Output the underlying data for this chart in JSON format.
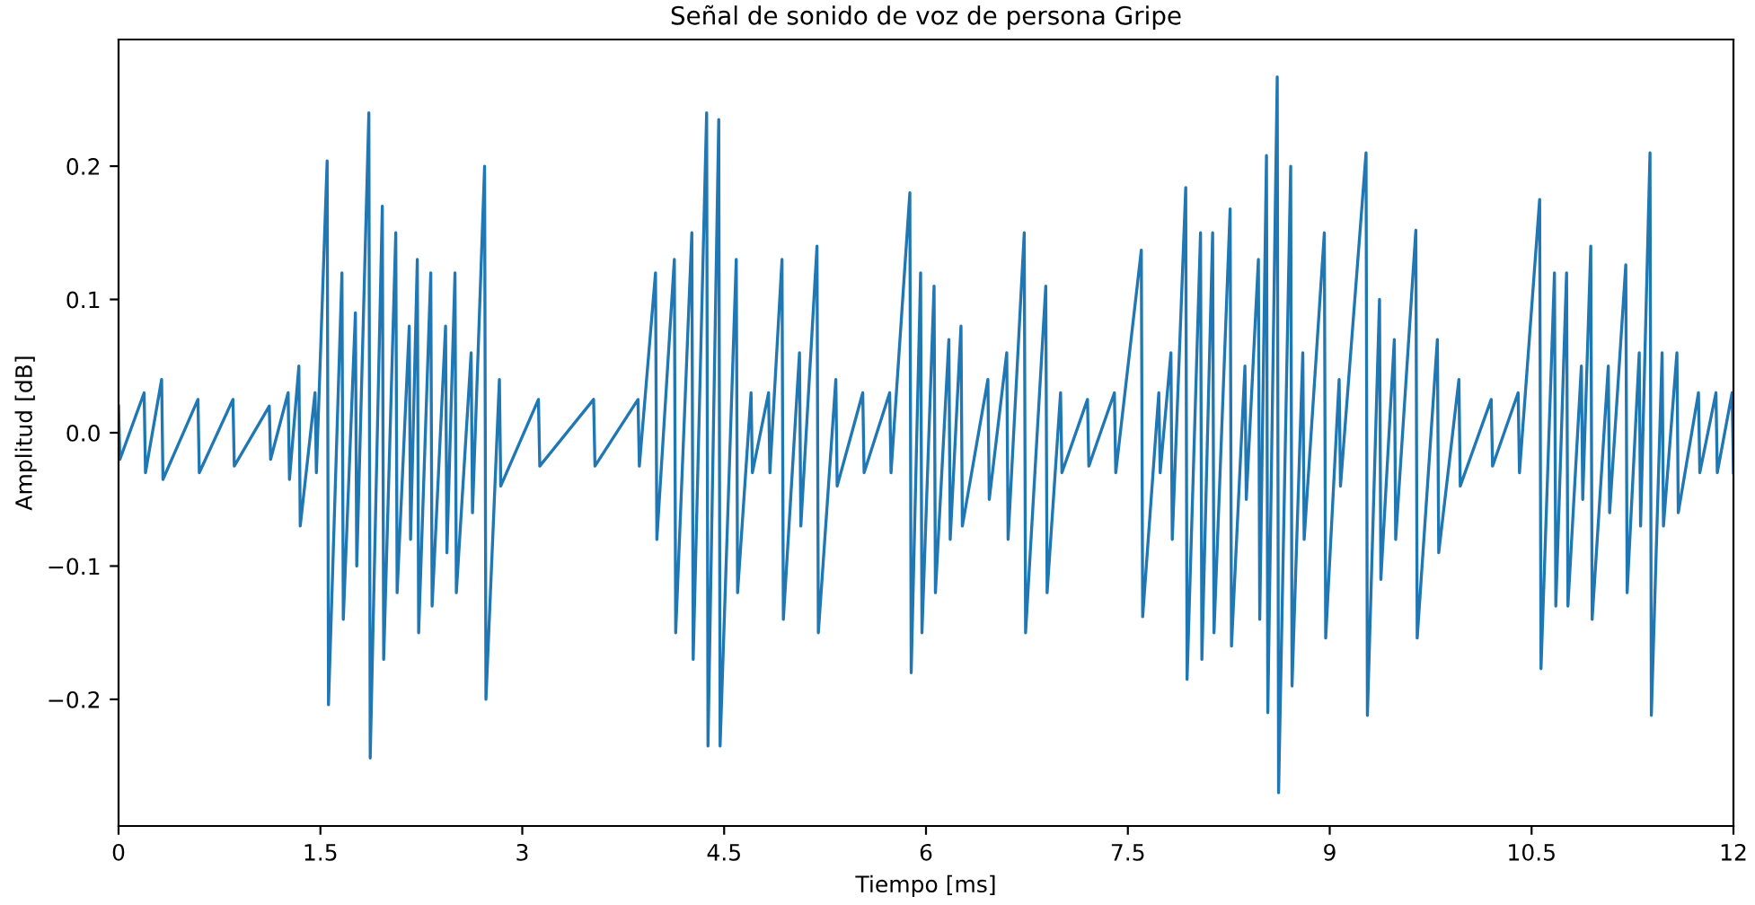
{
  "chart_data": {
    "type": "line",
    "title": "Señal de sonido de voz de persona Gripe",
    "xlabel": "Tiempo [ms]",
    "ylabel": "Amplitud [dB]",
    "xlim": [
      0,
      12
    ],
    "ylim": [
      -0.295,
      0.295
    ],
    "xticks": [
      0,
      1.5,
      3,
      4.5,
      6,
      7.5,
      9,
      10.5,
      12
    ],
    "yticks": [
      {
        "value": -0.2,
        "label": "−0.2"
      },
      {
        "value": -0.1,
        "label": "−0.1"
      },
      {
        "value": 0,
        "label": "0.0"
      },
      {
        "value": 0.1,
        "label": "0.1"
      },
      {
        "value": 0.2,
        "label": "0.2"
      }
    ],
    "grid": false,
    "line_style": "solid",
    "marker": "none",
    "series": [
      {
        "color": "#1f77b4",
        "x": [
          0.0,
          0.01,
          0.19,
          0.2,
          0.32,
          0.33,
          0.59,
          0.6,
          0.85,
          0.86,
          1.12,
          1.13,
          1.26,
          1.27,
          1.34,
          1.35,
          1.46,
          1.47,
          1.55,
          1.56,
          1.66,
          1.67,
          1.76,
          1.77,
          1.86,
          1.87,
          1.96,
          1.97,
          2.06,
          2.07,
          2.16,
          2.17,
          2.22,
          2.23,
          2.32,
          2.33,
          2.43,
          2.44,
          2.5,
          2.51,
          2.62,
          2.63,
          2.72,
          2.73,
          2.83,
          2.84,
          3.12,
          3.13,
          3.53,
          3.54,
          3.86,
          3.87,
          3.99,
          4.0,
          4.13,
          4.14,
          4.26,
          4.27,
          4.37,
          4.38,
          4.46,
          4.47,
          4.59,
          4.6,
          4.7,
          4.71,
          4.83,
          4.84,
          4.93,
          4.94,
          5.06,
          5.07,
          5.19,
          5.2,
          5.33,
          5.34,
          5.53,
          5.54,
          5.73,
          5.74,
          5.88,
          5.89,
          5.96,
          5.97,
          6.06,
          6.07,
          6.17,
          6.18,
          6.26,
          6.27,
          6.46,
          6.47,
          6.6,
          6.61,
          6.73,
          6.74,
          6.89,
          6.9,
          7.0,
          7.01,
          7.2,
          7.21,
          7.4,
          7.41,
          7.6,
          7.61,
          7.73,
          7.74,
          7.82,
          7.83,
          7.93,
          7.94,
          8.04,
          8.05,
          8.13,
          8.14,
          8.26,
          8.27,
          8.37,
          8.38,
          8.47,
          8.48,
          8.53,
          8.54,
          8.61,
          8.62,
          8.71,
          8.72,
          8.8,
          8.81,
          8.96,
          8.97,
          9.07,
          9.08,
          9.27,
          9.28,
          9.37,
          9.38,
          9.48,
          9.49,
          9.64,
          9.65,
          9.8,
          9.81,
          9.96,
          9.97,
          10.2,
          10.21,
          10.4,
          10.41,
          10.56,
          10.57,
          10.67,
          10.68,
          10.76,
          10.77,
          10.87,
          10.88,
          10.94,
          10.95,
          11.07,
          11.08,
          11.2,
          11.21,
          11.3,
          11.31,
          11.38,
          11.39,
          11.47,
          11.48,
          11.58,
          11.59,
          11.74,
          11.75,
          11.87,
          11.88,
          11.99,
          12.0
        ],
        "values": [
          0.02,
          -0.02,
          0.03,
          -0.03,
          0.04,
          -0.035,
          0.025,
          -0.03,
          0.025,
          -0.025,
          0.02,
          -0.02,
          0.03,
          -0.035,
          0.05,
          -0.07,
          0.03,
          -0.03,
          0.204,
          -0.204,
          0.12,
          -0.14,
          0.09,
          -0.1,
          0.24,
          -0.244,
          0.17,
          -0.17,
          0.15,
          -0.12,
          0.08,
          -0.08,
          0.13,
          -0.15,
          0.12,
          -0.13,
          0.08,
          -0.09,
          0.12,
          -0.12,
          0.06,
          -0.06,
          0.2,
          -0.2,
          0.04,
          -0.04,
          0.025,
          -0.025,
          0.025,
          -0.025,
          0.025,
          -0.025,
          0.12,
          -0.08,
          0.13,
          -0.15,
          0.15,
          -0.17,
          0.24,
          -0.235,
          0.235,
          -0.235,
          0.13,
          -0.12,
          0.03,
          -0.03,
          0.03,
          -0.03,
          0.13,
          -0.14,
          0.06,
          -0.07,
          0.14,
          -0.15,
          0.04,
          -0.04,
          0.03,
          -0.03,
          0.03,
          -0.03,
          0.18,
          -0.18,
          0.12,
          -0.15,
          0.11,
          -0.12,
          0.07,
          -0.08,
          0.08,
          -0.07,
          0.04,
          -0.05,
          0.06,
          -0.08,
          0.15,
          -0.15,
          0.11,
          -0.12,
          0.03,
          -0.03,
          0.025,
          -0.025,
          0.03,
          -0.03,
          0.137,
          -0.138,
          0.03,
          -0.03,
          0.06,
          -0.08,
          0.184,
          -0.185,
          0.15,
          -0.17,
          0.15,
          -0.15,
          0.168,
          -0.16,
          0.05,
          -0.05,
          0.13,
          -0.14,
          0.208,
          -0.21,
          0.267,
          -0.27,
          0.2,
          -0.19,
          0.06,
          -0.08,
          0.15,
          -0.154,
          0.04,
          -0.04,
          0.21,
          -0.212,
          0.1,
          -0.11,
          0.07,
          -0.08,
          0.152,
          -0.154,
          0.07,
          -0.09,
          0.04,
          -0.04,
          0.025,
          -0.025,
          0.03,
          -0.03,
          0.175,
          -0.177,
          0.12,
          -0.13,
          0.12,
          -0.13,
          0.05,
          -0.05,
          0.14,
          -0.14,
          0.05,
          -0.06,
          0.126,
          -0.12,
          0.06,
          -0.07,
          0.21,
          -0.212,
          0.06,
          -0.07,
          0.06,
          -0.06,
          0.03,
          -0.03,
          0.03,
          -0.03,
          0.03,
          -0.03
        ]
      }
    ]
  }
}
